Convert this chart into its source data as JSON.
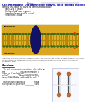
{
  "title": "Cell Membrane Diagram (lipid bilayer, fluid mosaic model)",
  "subtitle": "Identify and color the parts as demonstrated below:",
  "bullets": [
    "Fatty Acid = yellow",
    "Phospholipid head = green",
    "Transmembrane protein = red",
    "Cholesterol = blue"
  ],
  "review_header": "Review",
  "review_lines": [
    "  The cell membrane is sometimes referred to as",
    "the _______________.  The cell membrane is",
    "made up of two layers of _______________",
    "called ___________.  Phospholipids are fully",
    "integral membrane proteins of the cell.",
    "",
    "  Each phospholipid has a __________ head",
    "having two non-polar tails __________ tails."
  ],
  "bg_color": "#ffffff",
  "title_color": "#0000aa",
  "text_color": "#000000",
  "caption_color": "#444444",
  "name_line": "Name: _____________________"
}
